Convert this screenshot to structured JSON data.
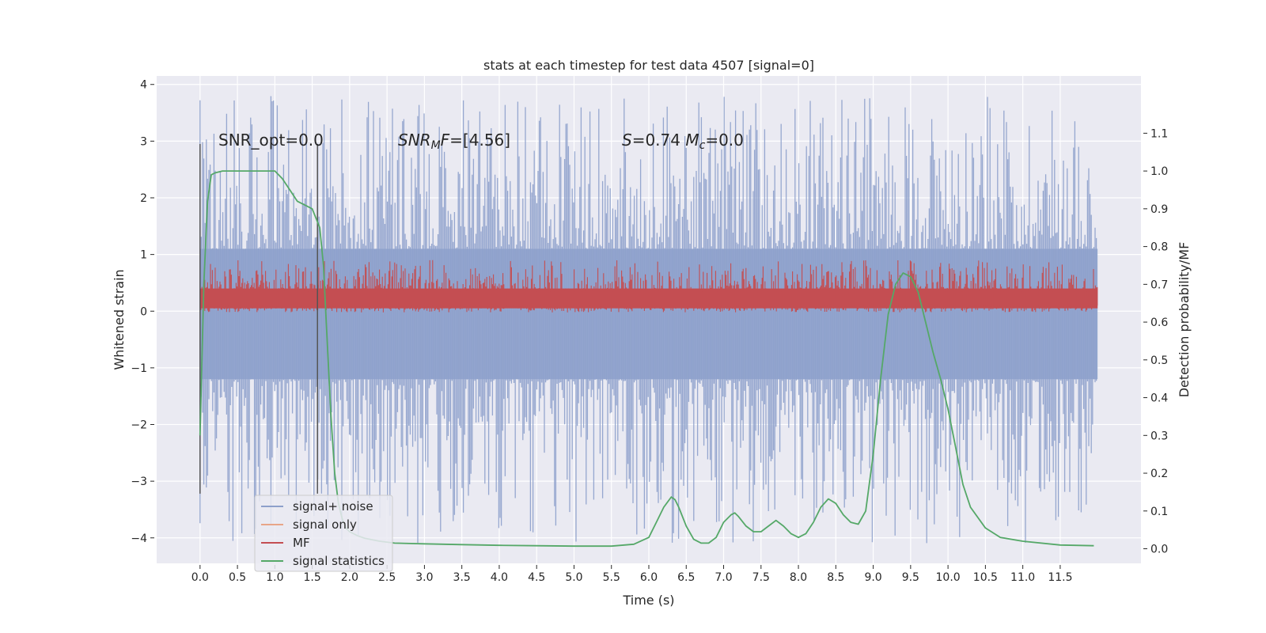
{
  "chart_data": {
    "type": "line",
    "title": "stats at each timestep for test data 4507 [signal=0]",
    "xlabel": "Time (s)",
    "ylabel": "Whitened strain",
    "y2label": "Detection probability/MF",
    "xlim": [
      -0.58,
      12.58
    ],
    "ylim": [
      -4.45,
      4.15
    ],
    "y2lim": [
      -0.0387,
      1.2516
    ],
    "xticks": [
      0.0,
      0.5,
      1.0,
      1.5,
      2.0,
      2.5,
      3.0,
      3.5,
      4.0,
      4.5,
      5.0,
      5.5,
      6.0,
      6.5,
      7.0,
      7.5,
      8.0,
      8.5,
      9.0,
      9.5,
      10.0,
      10.5,
      11.0,
      11.5
    ],
    "xtick_labels": [
      "0.0",
      "0.5",
      "1.0",
      "1.5",
      "2.0",
      "2.5",
      "3.0",
      "3.5",
      "4.0",
      "4.5",
      "5.0",
      "5.5",
      "6.0",
      "6.5",
      "7.0",
      "7.5",
      "8.0",
      "8.5",
      "9.0",
      "9.5",
      "10.0",
      "10.5",
      "11.0",
      "11.5"
    ],
    "yticks": [
      -4,
      -3,
      -2,
      -1,
      0,
      1,
      2,
      3,
      4
    ],
    "ytick_labels": [
      "−4",
      "−3",
      "−2",
      "−1",
      "0",
      "1",
      "2",
      "3",
      "4"
    ],
    "y2ticks": [
      0.0,
      0.1,
      0.2,
      0.3,
      0.4,
      0.5,
      0.6,
      0.7,
      0.8,
      0.9,
      1.0,
      1.1
    ],
    "y2tick_labels": [
      "0.0",
      "0.1",
      "0.2",
      "0.3",
      "0.4",
      "0.5",
      "0.6",
      "0.7",
      "0.8",
      "0.9",
      "1.0",
      "1.1"
    ],
    "grid": true,
    "legend_position": "lower-left",
    "legend": [
      {
        "label": "signal+ noise",
        "color": "#8da0cb"
      },
      {
        "label": "signal only",
        "color": "#e8a588"
      },
      {
        "label": "MF",
        "color": "#c44e52"
      },
      {
        "label": "signal statistics",
        "color": "#55a868"
      }
    ],
    "annotations": [
      {
        "id": "snr-opt",
        "text": "SNR_opt=0.0",
        "x": 0.2,
        "y": 3.0
      },
      {
        "id": "snr-mf",
        "text": "SNR_MF=[4.56]",
        "x": 2.6,
        "y": 3.0
      },
      {
        "id": "s-mc",
        "text": "S=0.74   M_c=0.0",
        "x": 5.6,
        "y": 3.0
      }
    ],
    "vertical_lines": [
      0.0,
      1.57
    ],
    "noise_band": {
      "x_start": 0.0,
      "x_end": 12.0,
      "dense_low": -1.2,
      "dense_high": 1.1,
      "peak_low": -4.1,
      "peak_high": 3.8
    },
    "mf_band": {
      "x_start": 0.0,
      "x_end": 12.0,
      "low": 0.0,
      "high": 0.5,
      "peak_high": 0.9
    },
    "series": [
      {
        "name": "signal statistics",
        "color": "#55a868",
        "axis": "y2",
        "x": [
          0.0,
          0.05,
          0.1,
          0.15,
          0.2,
          0.3,
          0.4,
          0.6,
          0.8,
          1.0,
          1.1,
          1.2,
          1.3,
          1.35,
          1.4,
          1.5,
          1.6,
          1.65,
          1.7,
          1.75,
          1.8,
          1.85,
          1.9,
          1.95,
          2.0,
          2.1,
          2.2,
          2.4,
          2.6,
          3.0,
          3.5,
          4.0,
          4.5,
          5.0,
          5.5,
          5.8,
          6.0,
          6.1,
          6.2,
          6.3,
          6.35,
          6.4,
          6.5,
          6.6,
          6.7,
          6.8,
          6.9,
          7.0,
          7.1,
          7.15,
          7.2,
          7.3,
          7.4,
          7.5,
          7.6,
          7.7,
          7.8,
          7.9,
          8.0,
          8.1,
          8.2,
          8.3,
          8.4,
          8.5,
          8.6,
          8.7,
          8.8,
          8.9,
          9.0,
          9.1,
          9.2,
          9.3,
          9.4,
          9.5,
          9.6,
          9.7,
          9.8,
          9.9,
          10.0,
          10.1,
          10.2,
          10.3,
          10.5,
          10.7,
          11.0,
          11.5,
          11.95
        ],
        "y": [
          0.3,
          0.7,
          0.92,
          0.99,
          0.995,
          1.0,
          1.0,
          1.0,
          1.0,
          1.0,
          0.98,
          0.95,
          0.92,
          0.915,
          0.91,
          0.9,
          0.85,
          0.75,
          0.55,
          0.35,
          0.2,
          0.12,
          0.08,
          0.055,
          0.045,
          0.035,
          0.028,
          0.02,
          0.015,
          0.013,
          0.011,
          0.009,
          0.008,
          0.007,
          0.007,
          0.012,
          0.03,
          0.07,
          0.11,
          0.137,
          0.13,
          0.11,
          0.06,
          0.025,
          0.015,
          0.015,
          0.03,
          0.07,
          0.09,
          0.095,
          0.085,
          0.06,
          0.045,
          0.045,
          0.06,
          0.075,
          0.06,
          0.04,
          0.03,
          0.04,
          0.07,
          0.11,
          0.132,
          0.12,
          0.09,
          0.07,
          0.065,
          0.1,
          0.25,
          0.45,
          0.62,
          0.7,
          0.73,
          0.72,
          0.68,
          0.6,
          0.52,
          0.45,
          0.37,
          0.27,
          0.17,
          0.11,
          0.055,
          0.03,
          0.02,
          0.01,
          0.008
        ]
      }
    ]
  }
}
